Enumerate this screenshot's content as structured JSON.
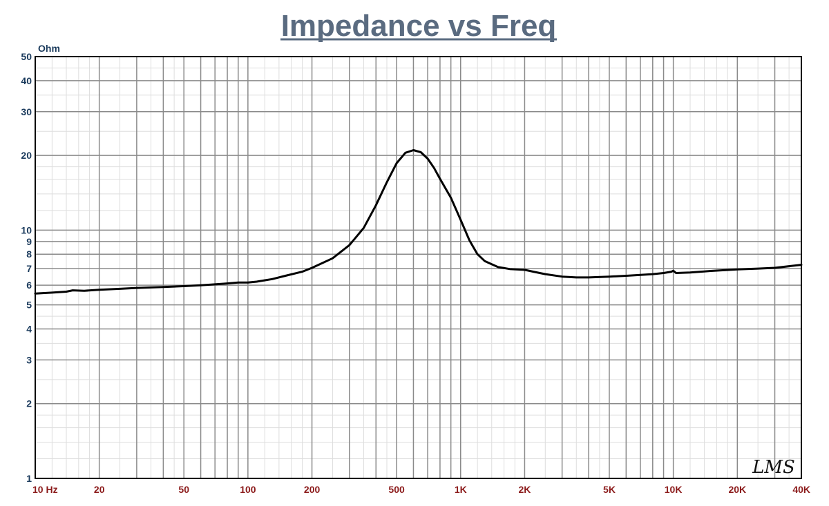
{
  "chart_data": {
    "type": "line",
    "title": "Impedance vs Freq",
    "ylabel": "Ohm",
    "xlabel": "",
    "x_scale": "log",
    "y_scale": "log",
    "xlim": [
      10,
      40000
    ],
    "ylim": [
      1,
      50
    ],
    "grid": true,
    "x_ticks": [
      {
        "value": 10,
        "label": "10  Hz"
      },
      {
        "value": 20,
        "label": "20"
      },
      {
        "value": 50,
        "label": "50"
      },
      {
        "value": 100,
        "label": "100"
      },
      {
        "value": 200,
        "label": "200"
      },
      {
        "value": 500,
        "label": "500"
      },
      {
        "value": 1000,
        "label": "1K"
      },
      {
        "value": 2000,
        "label": "2K"
      },
      {
        "value": 5000,
        "label": "5K"
      },
      {
        "value": 10000,
        "label": "10K"
      },
      {
        "value": 20000,
        "label": "20K"
      },
      {
        "value": 40000,
        "label": "40K"
      }
    ],
    "y_ticks": [
      {
        "value": 1,
        "label": "1"
      },
      {
        "value": 2,
        "label": "2"
      },
      {
        "value": 3,
        "label": "3"
      },
      {
        "value": 4,
        "label": "4"
      },
      {
        "value": 5,
        "label": "5"
      },
      {
        "value": 6,
        "label": "6"
      },
      {
        "value": 7,
        "label": "7"
      },
      {
        "value": 8,
        "label": "8"
      },
      {
        "value": 9,
        "label": "9"
      },
      {
        "value": 10,
        "label": "10"
      },
      {
        "value": 20,
        "label": "20"
      },
      {
        "value": 30,
        "label": "30"
      },
      {
        "value": 40,
        "label": "40"
      },
      {
        "value": 50,
        "label": "50"
      }
    ],
    "series": [
      {
        "color": "#000000",
        "x": [
          10,
          12,
          14,
          15,
          17,
          20,
          25,
          30,
          40,
          50,
          60,
          70,
          80,
          90,
          100,
          110,
          130,
          150,
          180,
          200,
          250,
          300,
          350,
          400,
          450,
          500,
          550,
          600,
          650,
          700,
          750,
          800,
          900,
          1000,
          1100,
          1200,
          1300,
          1500,
          1700,
          2000,
          2200,
          2500,
          3000,
          3500,
          4000,
          5000,
          6000,
          7000,
          8000,
          9000,
          9800,
          10000,
          10300,
          12000,
          15000,
          20000,
          25000,
          30000,
          40000
        ],
        "y": [
          5.55,
          5.6,
          5.65,
          5.72,
          5.7,
          5.75,
          5.8,
          5.85,
          5.9,
          5.95,
          6.0,
          6.05,
          6.1,
          6.15,
          6.15,
          6.2,
          6.35,
          6.55,
          6.8,
          7.05,
          7.7,
          8.7,
          10.2,
          12.6,
          15.6,
          18.6,
          20.5,
          21.0,
          20.6,
          19.4,
          17.8,
          16.1,
          13.5,
          11.0,
          9.1,
          8.0,
          7.5,
          7.1,
          6.97,
          6.92,
          6.8,
          6.65,
          6.5,
          6.45,
          6.45,
          6.5,
          6.55,
          6.6,
          6.65,
          6.72,
          6.8,
          6.86,
          6.72,
          6.75,
          6.85,
          6.95,
          7.0,
          7.05,
          7.25
        ]
      }
    ]
  },
  "watermark": "LMS"
}
